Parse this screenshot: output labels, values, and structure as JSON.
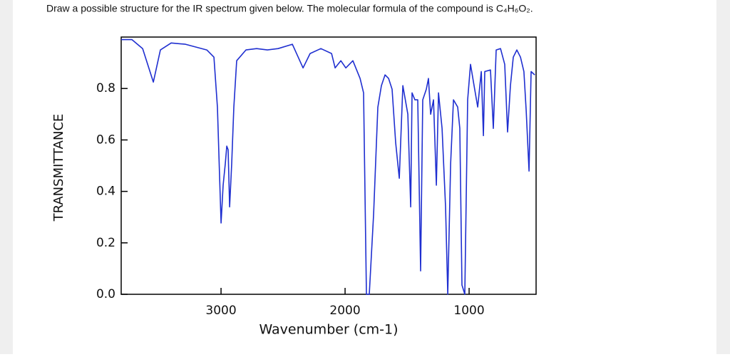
{
  "question": "Draw a possible structure for the IR spectrum given below. The molecular formula of the compound is C₄H₆O₂.",
  "chart_data": {
    "type": "line",
    "xlabel": "Wavenumber (cm-1)",
    "ylabel": "TRANSMITTANCE",
    "color": "#1f2fd0",
    "xlim": [
      3805,
      460
    ],
    "ylim": [
      0,
      1
    ],
    "xticks": [
      3000,
      2000,
      1000
    ],
    "yticks": [
      {
        "value": 0,
        "label": "0.0"
      },
      0.2,
      0.4,
      0.6,
      0.8
    ],
    "x": [
      3805,
      3718,
      3632,
      3546,
      3489,
      3402,
      3287,
      3115,
      3057,
      3029,
      3011,
      3000,
      2983,
      2966,
      2954,
      2943,
      2931,
      2914,
      2897,
      2874,
      2799,
      2713,
      2626,
      2540,
      2425,
      2339,
      2282,
      2195,
      2109,
      2080,
      2034,
      1994,
      1966,
      1937,
      1879,
      1851,
      1828,
      1805,
      1770,
      1736,
      1707,
      1678,
      1649,
      1621,
      1592,
      1563,
      1534,
      1494,
      1471,
      1460,
      1437,
      1414,
      1391,
      1374,
      1345,
      1328,
      1310,
      1287,
      1264,
      1247,
      1218,
      1190,
      1172,
      1149,
      1126,
      1092,
      1075,
      1058,
      1035,
      1012,
      989,
      960,
      931,
      902,
      885,
      874,
      828,
      805,
      782,
      747,
      713,
      690,
      667,
      644,
      615,
      586,
      558,
      540,
      517,
      500,
      471
    ],
    "values": [
      0.99,
      0.99,
      0.955,
      0.825,
      0.95,
      0.977,
      0.972,
      0.95,
      0.922,
      0.727,
      0.451,
      0.277,
      0.424,
      0.507,
      0.576,
      0.562,
      0.34,
      0.507,
      0.727,
      0.908,
      0.95,
      0.955,
      0.95,
      0.955,
      0.972,
      0.88,
      0.936,
      0.955,
      0.936,
      0.88,
      0.908,
      0.88,
      0.894,
      0.908,
      0.839,
      0.783,
      0,
      0,
      0.313,
      0.727,
      0.811,
      0.853,
      0.839,
      0.797,
      0.59,
      0.451,
      0.811,
      0.7,
      0.34,
      0.783,
      0.756,
      0.756,
      0.091,
      0.756,
      0.797,
      0.839,
      0.7,
      0.756,
      0.424,
      0.783,
      0.645,
      0.34,
      0,
      0.507,
      0.756,
      0.728,
      0.645,
      0.036,
      0,
      0.756,
      0.894,
      0.811,
      0.728,
      0.866,
      0.617,
      0.866,
      0.872,
      0.645,
      0.95,
      0.955,
      0.894,
      0.631,
      0.811,
      0.922,
      0.95,
      0.922,
      0.866,
      0.714,
      0.479,
      0.866,
      0.853
    ]
  }
}
